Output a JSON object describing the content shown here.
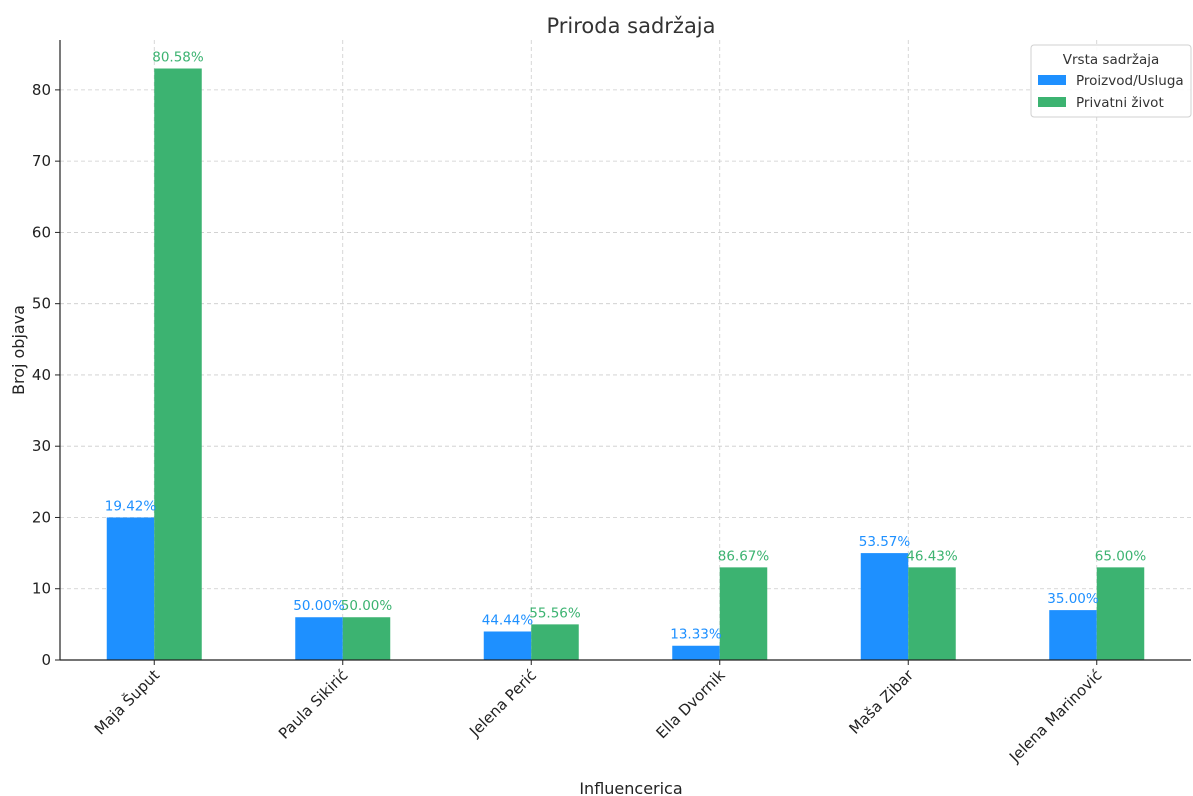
{
  "chart_data": {
    "type": "bar",
    "title": "Priroda sadržaja",
    "xlabel": "Influencerica",
    "ylabel": "Broj objava",
    "categories": [
      "Maja Šuput",
      "Paula Sikirić",
      "Jelena Perić",
      "Ella Dvornik",
      "Maša Zibar",
      "Jelena Marinović"
    ],
    "series": [
      {
        "name": "Proizvod/Usluga",
        "color": "#1e90ff",
        "values": [
          20,
          6,
          4,
          2,
          15,
          7
        ],
        "labels": [
          "19.42%",
          "50.00%",
          "44.44%",
          "13.33%",
          "53.57%",
          "35.00%"
        ]
      },
      {
        "name": "Privatni život",
        "color": "#3cb371",
        "values": [
          83,
          6,
          5,
          13,
          13,
          13
        ],
        "labels": [
          "80.58%",
          "50.00%",
          "55.56%",
          "86.67%",
          "46.43%",
          "65.00%"
        ]
      }
    ],
    "ylim": [
      0,
      87
    ],
    "yticks": [
      0,
      10,
      20,
      30,
      40,
      50,
      60,
      70,
      80
    ],
    "grid": true,
    "legend": {
      "title": "Vrsta sadržaja",
      "placement": "top-right"
    }
  }
}
